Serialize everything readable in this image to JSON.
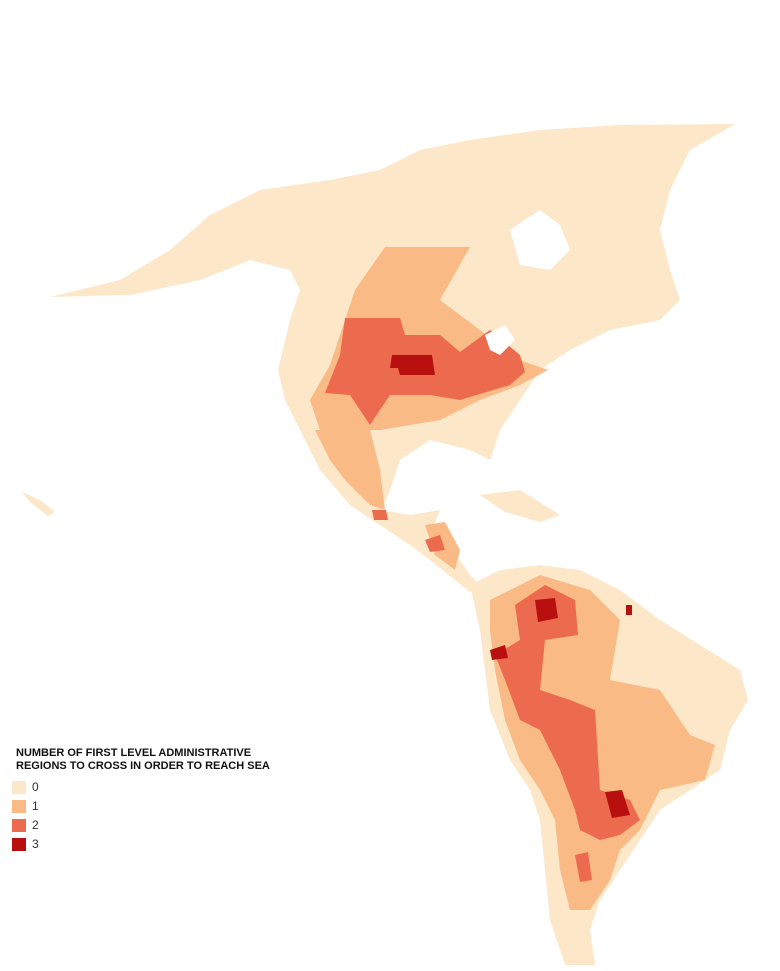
{
  "legend": {
    "title": [
      "NUMBER OF FIRST LEVEL ADMINISTRATIVE",
      "REGIONS TO CROSS IN ORDER TO REACH SEA"
    ],
    "items": [
      {
        "label": "0",
        "color": "#fde7c9"
      },
      {
        "label": "1",
        "color": "#f9ba86"
      },
      {
        "label": "2",
        "color": "#ec6b4e"
      },
      {
        "label": "3",
        "color": "#b80f0f"
      }
    ]
  }
}
